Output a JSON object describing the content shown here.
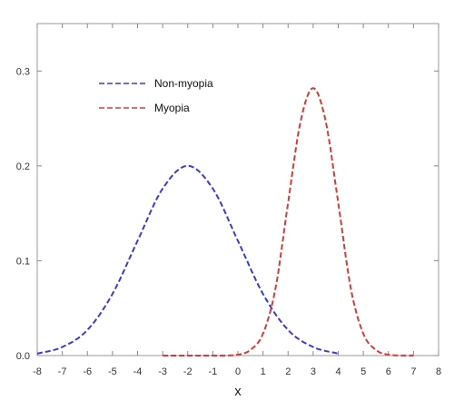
{
  "chart_data": {
    "type": "line",
    "title": "",
    "xlabel": "x",
    "ylabel": "",
    "xlim": [
      -8,
      8
    ],
    "ylim": [
      0,
      0.35
    ],
    "xticks": [
      -8,
      -7,
      -6,
      -5,
      -4,
      -3,
      -2,
      -1,
      0,
      1,
      2,
      3,
      4,
      5,
      6,
      7,
      8
    ],
    "yticks": [
      0.0,
      0.1,
      0.2,
      0.3
    ],
    "ytick_labels": [
      "0.0",
      "0.1",
      "0.2",
      "0.3"
    ],
    "grid": false,
    "legend_position": "top-left",
    "series": [
      {
        "name": "Non-myopia",
        "color": "#3a3ad6",
        "style": "dashed",
        "x": [
          -8,
          -7,
          -6,
          -5,
          -4,
          -3,
          -2,
          -1,
          0,
          1,
          2,
          3,
          4
        ],
        "y": [
          0.002,
          0.009,
          0.027,
          0.065,
          0.121,
          0.176,
          0.2,
          0.176,
          0.121,
          0.065,
          0.027,
          0.009,
          0.002
        ]
      },
      {
        "name": "Myopia",
        "color": "#d63a3a",
        "style": "dashed",
        "x": [
          -3,
          -2,
          -1,
          0,
          0.5,
          1,
          1.5,
          2,
          2.5,
          3,
          3.5,
          4,
          4.5,
          5,
          5.5,
          6,
          7
        ],
        "y": [
          0.0,
          0.0,
          0.0,
          0.001,
          0.006,
          0.023,
          0.071,
          0.161,
          0.247,
          0.282,
          0.247,
          0.161,
          0.071,
          0.023,
          0.006,
          0.001,
          0.0
        ]
      }
    ]
  }
}
